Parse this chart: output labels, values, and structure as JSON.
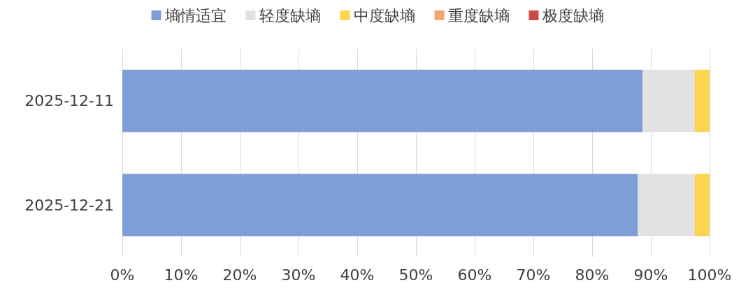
{
  "chart_data": {
    "type": "bar",
    "orientation": "horizontal",
    "stacked": true,
    "categories": [
      "2025-12-11",
      "2025-12-21"
    ],
    "series": [
      {
        "name": "墒情适宜",
        "color": "#7f9ed6",
        "values": [
          88.6,
          87.8
        ]
      },
      {
        "name": "轻度缺墒",
        "color": "#e2e2e2",
        "values": [
          8.9,
          9.7
        ]
      },
      {
        "name": "中度缺墒",
        "color": "#fdd54e",
        "values": [
          2.5,
          2.5
        ]
      },
      {
        "name": "重度缺墒",
        "color": "#f0a672",
        "values": [
          0,
          0
        ]
      },
      {
        "name": "极度缺墒",
        "color": "#cc4a4a",
        "values": [
          0,
          0
        ]
      }
    ],
    "xlim": [
      0,
      100
    ],
    "xticks": [
      {
        "value": 0,
        "label": "0%"
      },
      {
        "value": 10,
        "label": "10%"
      },
      {
        "value": 20,
        "label": "20%"
      },
      {
        "value": 30,
        "label": "30%"
      },
      {
        "value": 40,
        "label": "40%"
      },
      {
        "value": 50,
        "label": "50%"
      },
      {
        "value": 60,
        "label": "60%"
      },
      {
        "value": 70,
        "label": "70%"
      },
      {
        "value": 80,
        "label": "80%"
      },
      {
        "value": 90,
        "label": "90%"
      },
      {
        "value": 100,
        "label": "100%"
      }
    ],
    "grid": "x",
    "legend": "top"
  }
}
